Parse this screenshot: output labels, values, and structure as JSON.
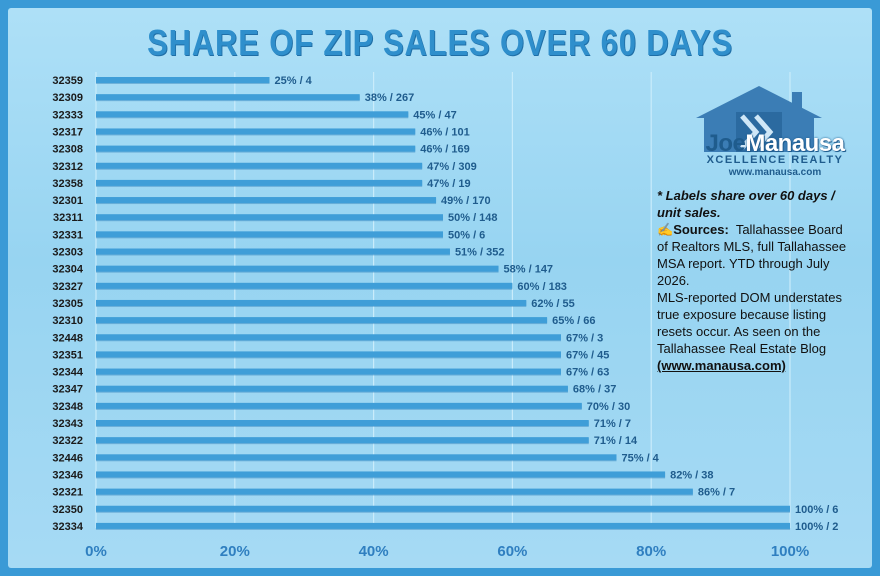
{
  "title": "SHARE OF ZIP SALES OVER 60 DAYS",
  "logo": {
    "name_part1": "Joe",
    "name_part2": "Manausa",
    "subtitle": "XCELLENCE REALTY",
    "url": "www.manausa.com",
    "icon": "house-x-logo-icon"
  },
  "notes": {
    "note": "* Labels share over 60 days / unit sales.",
    "sources_icon": "✍",
    "sources_heading": "Sources:",
    "sources_text": "Tallahassee Board of Realtors MLS, full Tallahassee MSA report.  YTD through July 2026.",
    "caveat": "MLS-reported DOM understates true exposure because  listing resets occur.  As seen on the Tallahassee Real Estate Blog",
    "url": "(www.manausa.com)"
  },
  "colors": {
    "bar": "#3f9ed8",
    "bar_dark": "#2c7fba",
    "label": "#1f5c8d",
    "background": "#a6daf4",
    "border": "#3a9ad6"
  },
  "chart_data": {
    "type": "bar",
    "orientation": "horizontal",
    "title": "SHARE OF ZIP SALES OVER 60 DAYS",
    "xlim": [
      0,
      100
    ],
    "x_ticks": [
      "0%",
      "20%",
      "40%",
      "60%",
      "80%",
      "100%"
    ],
    "grid": true,
    "categories": [
      "32359",
      "32309",
      "32333",
      "32317",
      "32308",
      "32312",
      "32358",
      "32301",
      "32311",
      "32331",
      "32303",
      "32304",
      "32327",
      "32305",
      "32310",
      "32448",
      "32351",
      "32344",
      "32347",
      "32348",
      "32343",
      "32322",
      "32446",
      "32346",
      "32321",
      "32350",
      "32334"
    ],
    "values": [
      25,
      38,
      45,
      46,
      46,
      47,
      47,
      49,
      50,
      50,
      51,
      58,
      60,
      62,
      65,
      67,
      67,
      67,
      68,
      70,
      71,
      71,
      75,
      82,
      86,
      100,
      100
    ],
    "labels": [
      "25% / 4",
      "38% / 267",
      "45% / 47",
      "46% / 101",
      "46% / 169",
      "47% / 309",
      "47% / 19",
      "49% / 170",
      "50% / 148",
      "50% / 6",
      "51% / 352",
      "58% / 147",
      "60% / 183",
      "62% / 55",
      "65% / 66",
      "67% / 3",
      "67% / 45",
      "67% / 63",
      "68% / 37",
      "70% / 30",
      "71% / 7",
      "71% / 14",
      "75% / 4",
      "82% / 38",
      "86% / 7",
      "100% / 6",
      "100% / 2"
    ]
  }
}
